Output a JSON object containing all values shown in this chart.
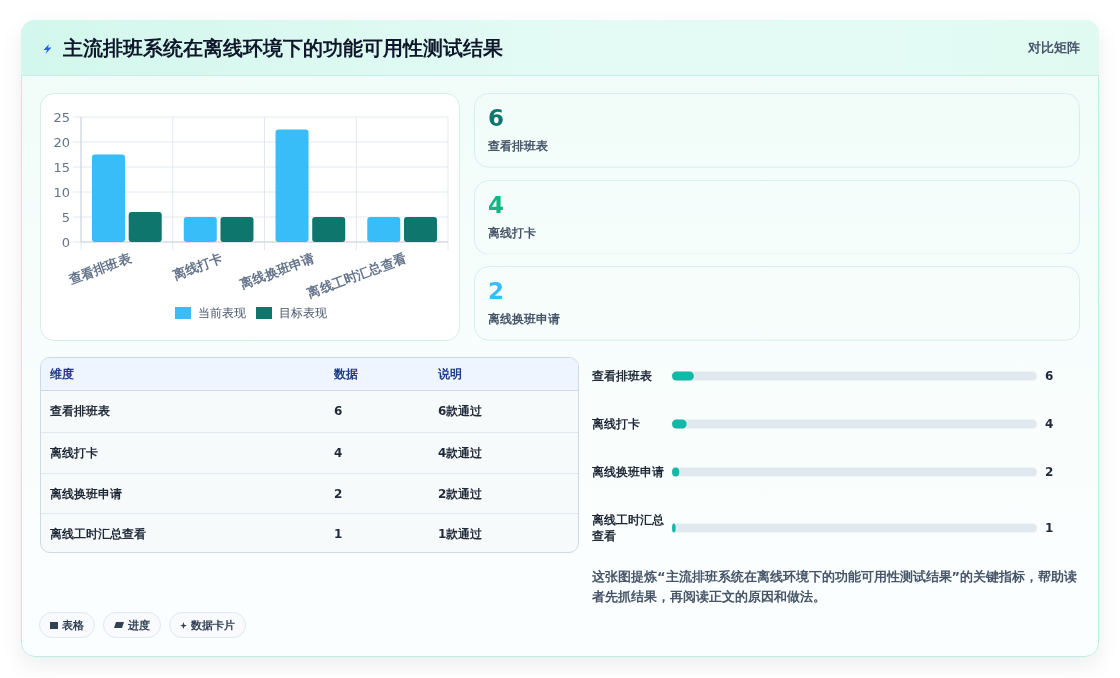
{
  "chart_data": [
    {
      "type": "other",
      "title": "主流排班系统在离线环境下的功能可用性测试结果",
      "annotations": [
        "对比矩阵"
      ]
    },
    {
      "type": "bar",
      "categories": [
        "查看排班表",
        "离线打卡",
        "离线换班申请",
        "离线工时汇总查看"
      ],
      "series": [
        {
          "name": "当前表现",
          "color": "#38bdf8",
          "values": [
            17.5,
            5,
            22.5,
            5
          ]
        },
        {
          "name": "目标表现",
          "color": "#0f766e",
          "values": [
            6,
            5,
            5,
            5
          ]
        }
      ],
      "ylim": [
        0,
        25
      ],
      "yticks": [
        0,
        5,
        10,
        15,
        20,
        25
      ],
      "grid": true,
      "legend": "bottom"
    },
    {
      "type": "other",
      "categories": [
        "查看排班表",
        "离线打卡",
        "离线换班申请"
      ],
      "values": [
        6,
        4,
        2
      ],
      "colors": [
        "#0f766e",
        "#10b981",
        "#38bdf8"
      ],
      "data_labels": true
    },
    {
      "type": "other",
      "categories": [
        "查看排班表",
        "离线打卡",
        "离线换班申请",
        "离线工时汇总查看"
      ],
      "annotations": [
        "维度"
      ],
      "series": [
        {
          "name": "数据",
          "values": [
            6,
            4,
            2,
            1
          ]
        },
        {
          "name": "说明",
          "values": [
            6,
            4,
            2,
            1
          ],
          "value_labels": [
            "6款通过",
            "4款通过",
            "2款通过",
            "1款通过"
          ]
        }
      ],
      "data_labels": true
    },
    {
      "type": "bar",
      "orientation": "horizontal",
      "categories": [
        "查看排班表",
        "离线打卡",
        "离线换班申请",
        "离线工时汇总查看"
      ],
      "values": [
        6,
        4,
        2,
        1
      ],
      "color": "#14b8a6",
      "xlim": [
        0,
        100
      ],
      "tick_labels": "y",
      "data_labels": true,
      "annotations": [
        "这张图提炼“主流排班系统在离线环境下的功能可用性测试结果”的关键指标，帮助读者先抓结果，再阅读正文的原因和做法。"
      ]
    },
    {
      "type": "other",
      "annotations": [
        "表格",
        "进度",
        "数据卡片"
      ]
    }
  ]
}
